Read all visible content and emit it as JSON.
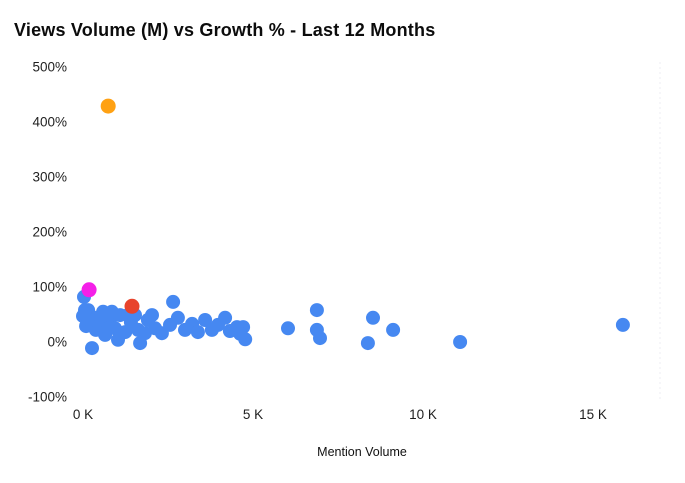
{
  "chart_data": {
    "type": "scatter",
    "title": "Views Volume (M) vs Growth % - Last 12 Months",
    "xlabel": "Mention Volume",
    "ylabel": "",
    "xlim": [
      0,
      17000
    ],
    "ylim": [
      -100,
      500
    ],
    "grid": false,
    "legend": false,
    "x_ticks": [
      {
        "value": 0,
        "label": "0 K"
      },
      {
        "value": 5000,
        "label": "5 K"
      },
      {
        "value": 10000,
        "label": "10 K"
      },
      {
        "value": 15000,
        "label": "15 K"
      }
    ],
    "y_ticks": [
      {
        "value": 500,
        "label": "500%"
      },
      {
        "value": 400,
        "label": "400%"
      },
      {
        "value": 300,
        "label": "300%"
      },
      {
        "value": 200,
        "label": "200%"
      },
      {
        "value": 100,
        "label": "100%"
      },
      {
        "value": 0,
        "label": "0%"
      },
      {
        "value": -100,
        "label": "-100%"
      }
    ],
    "right_border": {
      "color": "#ececf3",
      "dash": "2 3"
    },
    "colors": {
      "blue": "#4688f1",
      "red": "#e8432c",
      "magenta": "#f41fe8",
      "orange": "#ffa113",
      "title_text": "#0c0c0c",
      "tick_text": "#1f1f1f"
    },
    "series": [
      {
        "name": "blue",
        "color": "#4688f1",
        "radius": 7,
        "points": [
          [
            30,
            82
          ],
          [
            0,
            47
          ],
          [
            150,
            58
          ],
          [
            350,
            44
          ],
          [
            590,
            55
          ],
          [
            790,
            40
          ],
          [
            380,
            22
          ],
          [
            90,
            29
          ],
          [
            650,
            13
          ],
          [
            940,
            25
          ],
          [
            265,
            -11
          ],
          [
            1090,
            49
          ],
          [
            1240,
            18
          ],
          [
            1030,
            4
          ],
          [
            1410,
            36
          ],
          [
            1620,
            22
          ],
          [
            1680,
            -2
          ],
          [
            1530,
            49
          ],
          [
            210,
            40
          ],
          [
            500,
            31
          ],
          [
            850,
            55
          ],
          [
            60,
            58
          ],
          [
            740,
            25
          ],
          [
            1320,
            49
          ],
          [
            1820,
            16
          ],
          [
            2030,
            49
          ],
          [
            1910,
            40
          ],
          [
            2120,
            25
          ],
          [
            2320,
            16
          ],
          [
            2560,
            31
          ],
          [
            2650,
            73
          ],
          [
            2790,
            44
          ],
          [
            3000,
            22
          ],
          [
            3210,
            33
          ],
          [
            3380,
            18
          ],
          [
            3590,
            40
          ],
          [
            3790,
            22
          ],
          [
            3970,
            31
          ],
          [
            4180,
            44
          ],
          [
            4320,
            20
          ],
          [
            4530,
            27
          ],
          [
            4710,
            27
          ],
          [
            4770,
            5
          ],
          [
            4620,
            15
          ],
          [
            6030,
            25
          ],
          [
            6880,
            58
          ],
          [
            6880,
            22
          ],
          [
            6970,
            7
          ],
          [
            8380,
            -2
          ],
          [
            8530,
            44
          ],
          [
            9120,
            22
          ],
          [
            11090,
            0
          ],
          [
            15880,
            31
          ]
        ]
      },
      {
        "name": "red",
        "color": "#e8432c",
        "radius": 7.5,
        "points": [
          [
            1440,
            65
          ]
        ]
      },
      {
        "name": "magenta",
        "color": "#f41fe8",
        "radius": 7.5,
        "points": [
          [
            180,
            95
          ]
        ]
      },
      {
        "name": "orange",
        "color": "#ffa113",
        "radius": 7.5,
        "points": [
          [
            740,
            429
          ]
        ]
      }
    ],
    "point_radius": 7
  }
}
